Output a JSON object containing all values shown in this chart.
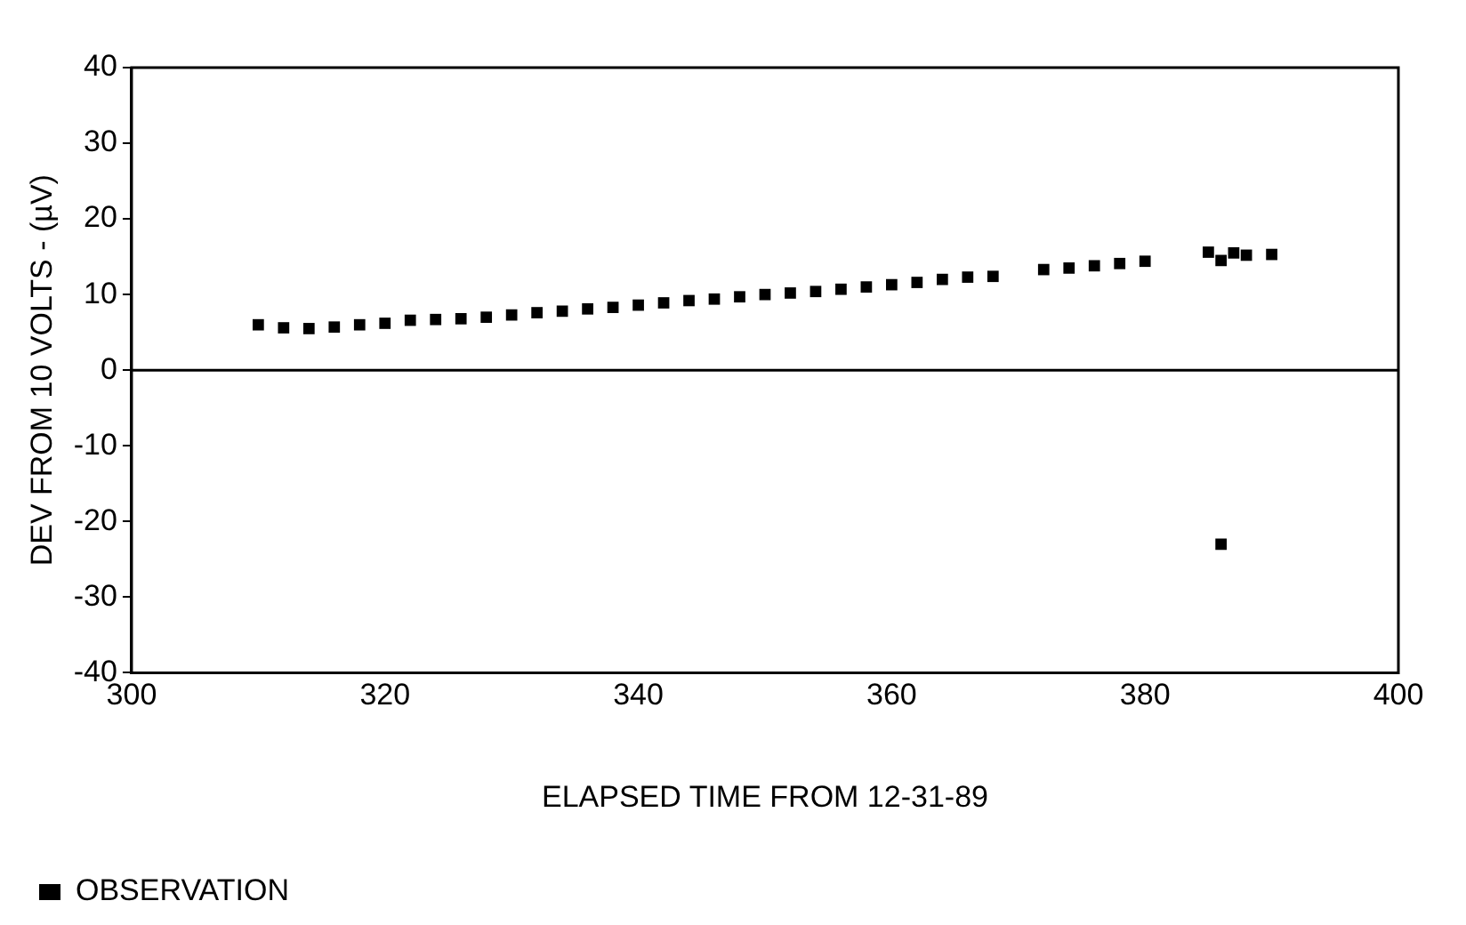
{
  "chart_data": {
    "type": "scatter",
    "xlabel": "ELAPSED TIME FROM 12-31-89",
    "ylabel": "DEV FROM 10 VOLTS - (µV)",
    "xlim": [
      300,
      400
    ],
    "xticks": [
      300,
      320,
      340,
      360,
      380,
      400
    ],
    "ylim": [
      -40,
      40
    ],
    "yticks": [
      -40,
      -30,
      -20,
      -10,
      0,
      10,
      20,
      30,
      40
    ],
    "grid": false,
    "legend": "bottom",
    "marker": "square",
    "ref_lines": [
      {
        "axis": "y",
        "value": 0,
        "color": "#000000"
      }
    ],
    "series": [
      {
        "name": "OBSERVATION",
        "color": "#000000",
        "x": [
          310,
          312,
          314,
          316,
          318,
          320,
          322,
          324,
          326,
          328,
          330,
          332,
          334,
          336,
          338,
          340,
          342,
          344,
          346,
          348,
          350,
          352,
          354,
          356,
          358,
          360,
          362,
          364,
          366,
          368,
          372,
          374,
          376,
          378,
          380,
          385,
          386,
          387,
          388,
          390,
          386
        ],
        "values": [
          6,
          5.6,
          5.5,
          5.7,
          6,
          6.2,
          6.6,
          6.7,
          6.8,
          7,
          7.3,
          7.6,
          7.8,
          8.1,
          8.3,
          8.6,
          8.9,
          9.2,
          9.4,
          9.7,
          10,
          10.2,
          10.4,
          10.7,
          11,
          11.3,
          11.6,
          12,
          12.3,
          12.4,
          13.3,
          13.5,
          13.8,
          14.1,
          14.4,
          15.6,
          14.5,
          15.5,
          15.2,
          15.3,
          -23
        ]
      }
    ]
  }
}
